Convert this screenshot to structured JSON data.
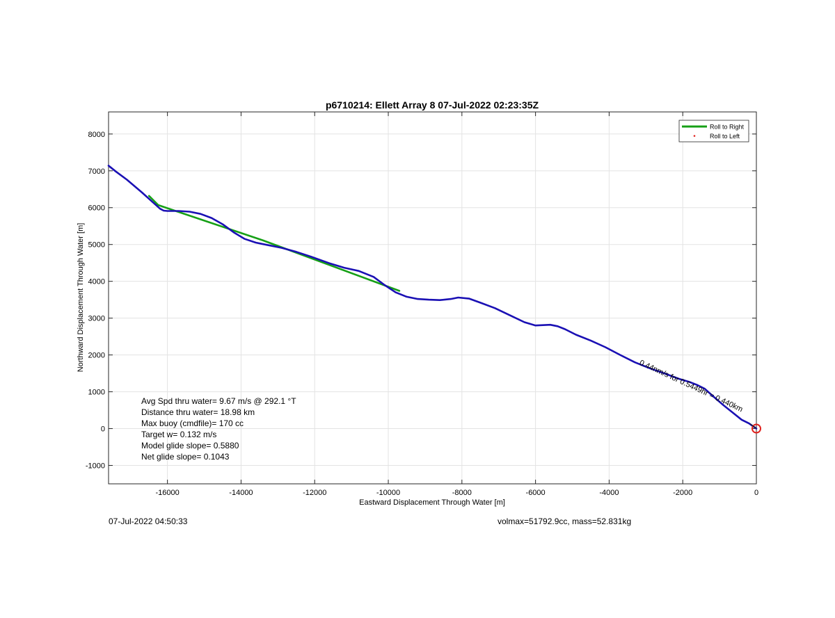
{
  "chart_data": {
    "type": "line",
    "title": "p6710214: Ellett Array 8 07-Jul-2022 02:23:35Z",
    "xlabel": "Eastward Displacement Through Water [m]",
    "ylabel": "Northward Displacement Through Water [m]",
    "xlim": [
      -17600,
      0
    ],
    "ylim": [
      -1500,
      8600
    ],
    "xticks": [
      -16000,
      -14000,
      -12000,
      -10000,
      -8000,
      -6000,
      -4000,
      -2000,
      0
    ],
    "yticks": [
      -1000,
      0,
      1000,
      2000,
      3000,
      4000,
      5000,
      6000,
      7000,
      8000
    ],
    "grid": true,
    "legend_position": "top-right",
    "legend": [
      {
        "label": "Roll to Right",
        "color": "#16a016",
        "style": "line"
      },
      {
        "label": "Roll to Left",
        "color": "#e0201c",
        "style": "dot"
      }
    ],
    "series": [
      {
        "name": "",
        "color": "#1a10b4",
        "x": [
          -17600,
          -17400,
          -17100,
          -16700,
          -16400,
          -16200,
          -16100,
          -16000,
          -15700,
          -15400,
          -15100,
          -14800,
          -14500,
          -14200,
          -13900,
          -13600,
          -13400,
          -13200,
          -12900,
          -12500,
          -12100,
          -11600,
          -11200,
          -10800,
          -10400,
          -10100,
          -9800,
          -9500,
          -9200,
          -8900,
          -8600,
          -8300,
          -8100,
          -7800,
          -7500,
          -7100,
          -6700,
          -6300,
          -6000,
          -5800,
          -5600,
          -5400,
          -5200,
          -4900,
          -4500,
          -4100,
          -3700,
          -3300,
          -2900,
          -2500,
          -2100,
          -1800,
          -1600,
          -1400,
          -1200,
          -900,
          -600,
          -400,
          -200,
          -100,
          0
        ],
        "y": [
          7140,
          6980,
          6760,
          6420,
          6150,
          5970,
          5920,
          5910,
          5910,
          5890,
          5830,
          5720,
          5550,
          5330,
          5150,
          5050,
          5010,
          4970,
          4910,
          4800,
          4670,
          4490,
          4370,
          4280,
          4120,
          3900,
          3700,
          3580,
          3520,
          3500,
          3490,
          3520,
          3560,
          3530,
          3420,
          3270,
          3080,
          2890,
          2800,
          2810,
          2820,
          2780,
          2700,
          2550,
          2390,
          2210,
          2000,
          1800,
          1640,
          1500,
          1350,
          1260,
          1180,
          1080,
          900,
          640,
          400,
          240,
          140,
          70,
          0
        ]
      },
      {
        "name": "Roll to Right",
        "color": "#16a016",
        "x": [
          -16500,
          -16250,
          -13400,
          -9700
        ],
        "y": [
          6320,
          6070,
          5110,
          3740
        ]
      }
    ],
    "annotations": [
      {
        "text": "Avg Spd thru water=  9.67 m/s @ 292.1 °T"
      },
      {
        "text": "Distance thru water= 18.98 km"
      },
      {
        "text": "Max buoy (cmdfile)= 170 cc"
      },
      {
        "text": "Target w= 0.132 m/s"
      },
      {
        "text": "Model glide slope= 0.5880"
      },
      {
        "text": "Net glide slope= 0.1043"
      }
    ],
    "rotated_label": {
      "text": "0.44nm/s for 0.5449hr = 0.440km",
      "x": -1800,
      "y": 1100,
      "angle_deg": 25
    },
    "end_marker": {
      "x": 0,
      "y": 0,
      "color": "#e0201c"
    }
  },
  "footer": {
    "left": "07-Jul-2022 04:50:33",
    "right": "volmax=51792.9cc, mass=52.831kg"
  }
}
